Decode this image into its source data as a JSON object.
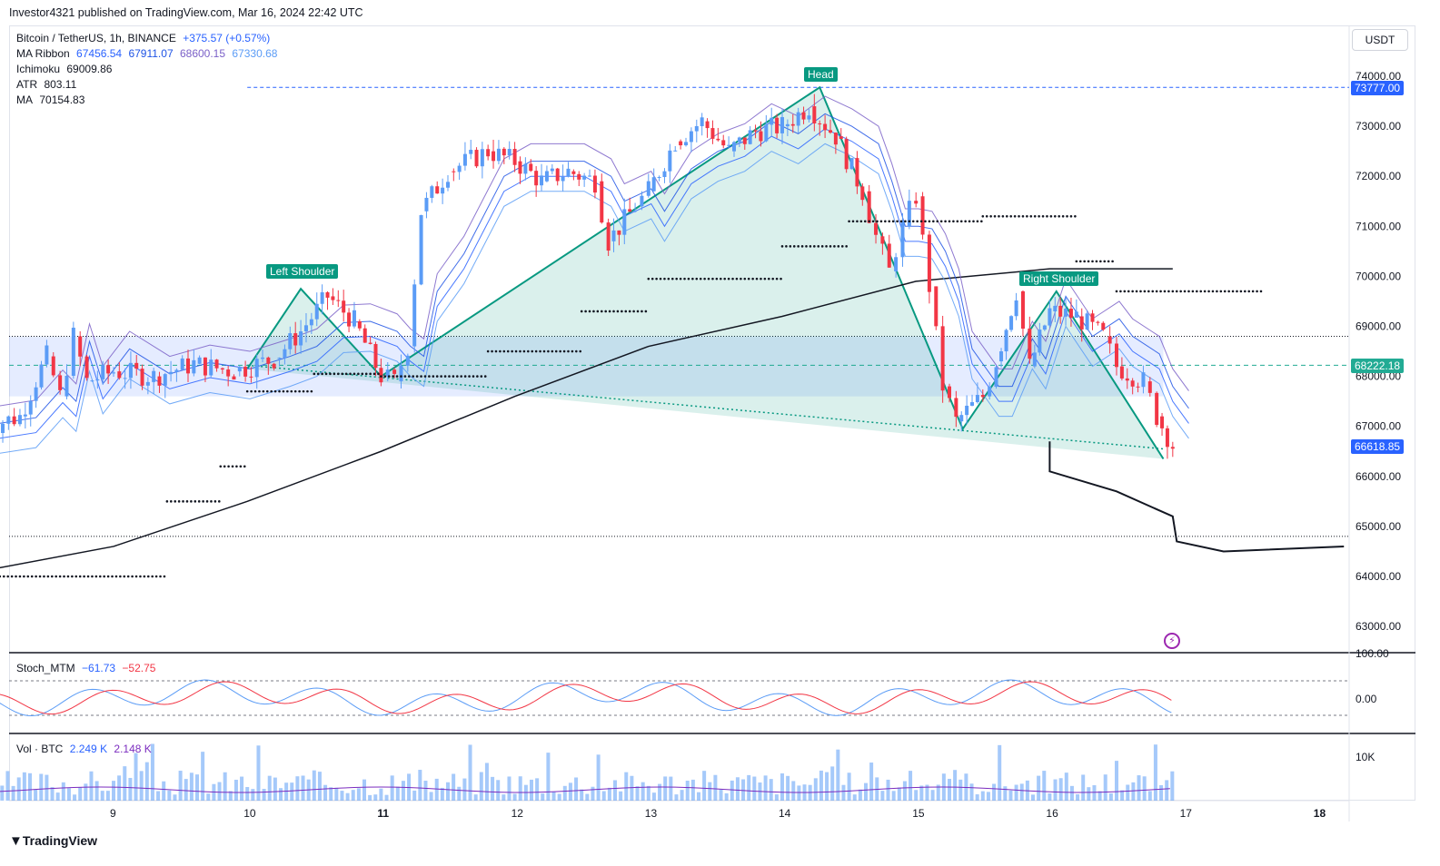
{
  "header": {
    "publisher": "Investor4321 published on TradingView.com, Mar 16, 2024 22:42 UTC"
  },
  "currency_button": "USDT",
  "legend": {
    "symbol": "Bitcoin / TetherUS, 1h, BINANCE",
    "change": "+375.57 (+0.57%)",
    "ma_ribbon_label": "MA Ribbon",
    "ma_ribbon_values": [
      "67456.54",
      "67911.07",
      "68600.15",
      "67330.68"
    ],
    "ichimoku_label": "Ichimoku",
    "ichimoku_value": "69009.86",
    "atr_label": "ATR",
    "atr_value": "803.11",
    "ma_label": "MA",
    "ma_value": "70154.83"
  },
  "pattern_labels": {
    "left": "Left Shoulder",
    "head": "Head",
    "right": "Right Shoulder"
  },
  "price_tags": [
    {
      "text": "73777.00",
      "color": "#2962ff",
      "price": 73777
    },
    {
      "text": "68222.18",
      "color": "#22ab94",
      "price": 68222.18
    },
    {
      "text": "66618.85",
      "color": "#2962ff",
      "price": 66618.85
    }
  ],
  "stoch": {
    "label": "Stoch_MTM",
    "v1": "−61.73",
    "v2": "−52.75"
  },
  "volume": {
    "label": "Vol · BTC",
    "v1": "2.249 K",
    "v2": "2.148 K"
  },
  "footer": "TradingView",
  "chart_data": {
    "type": "candlestick",
    "symbol": "BTC/USDT",
    "interval": "1h",
    "y_ticks": [
      63000,
      64000,
      65000,
      66000,
      67000,
      68000,
      69000,
      70000,
      71000,
      72000,
      73000,
      74000
    ],
    "x_ticks": [
      "9",
      "10",
      "11",
      "12",
      "13",
      "14",
      "15",
      "16",
      "17",
      "18"
    ],
    "stoch_ticks": [
      "100.00",
      "0.00"
    ],
    "volume_ticks": [
      "10K"
    ],
    "price_path": [
      [
        8.0,
        66950
      ],
      [
        8.3,
        67200
      ],
      [
        8.5,
        68400
      ],
      [
        8.6,
        67600
      ],
      [
        8.7,
        68800
      ],
      [
        8.8,
        67900
      ],
      [
        9.0,
        68100
      ],
      [
        9.3,
        68000
      ],
      [
        9.6,
        68250
      ],
      [
        9.9,
        68100
      ],
      [
        10.2,
        68350
      ],
      [
        10.4,
        68900
      ],
      [
        10.6,
        69600
      ],
      [
        10.8,
        69100
      ],
      [
        11.0,
        68000
      ],
      [
        11.1,
        67900
      ],
      [
        11.2,
        68600
      ],
      [
        11.3,
        71300
      ],
      [
        11.5,
        72100
      ],
      [
        11.8,
        72500
      ],
      [
        12.0,
        72300
      ],
      [
        12.2,
        71900
      ],
      [
        12.4,
        72100
      ],
      [
        12.6,
        71900
      ],
      [
        12.7,
        70700
      ],
      [
        12.9,
        71400
      ],
      [
        13.0,
        71700
      ],
      [
        13.2,
        72700
      ],
      [
        13.4,
        73100
      ],
      [
        13.6,
        72500
      ],
      [
        13.8,
        72900
      ],
      [
        14.0,
        73000
      ],
      [
        14.2,
        73400
      ],
      [
        14.4,
        72800
      ],
      [
        14.6,
        71700
      ],
      [
        14.7,
        70800
      ],
      [
        14.8,
        70100
      ],
      [
        14.9,
        71000
      ],
      [
        15.0,
        71600
      ],
      [
        15.1,
        69800
      ],
      [
        15.2,
        67800
      ],
      [
        15.3,
        67100
      ],
      [
        15.5,
        67600
      ],
      [
        15.6,
        68300
      ],
      [
        15.75,
        69700
      ],
      [
        15.85,
        68200
      ],
      [
        16.0,
        69300
      ],
      [
        16.2,
        69200
      ],
      [
        16.4,
        68800
      ],
      [
        16.5,
        68200
      ],
      [
        16.7,
        67900
      ],
      [
        16.8,
        67200
      ],
      [
        16.92,
        66619
      ]
    ],
    "ma_line": [
      [
        8.0,
        64100
      ],
      [
        9.0,
        64600
      ],
      [
        10.0,
        65500
      ],
      [
        11.0,
        66500
      ],
      [
        12.0,
        67600
      ],
      [
        13.0,
        68600
      ],
      [
        14.0,
        69200
      ],
      [
        15.0,
        69900
      ],
      [
        16.0,
        70150
      ],
      [
        16.92,
        70150
      ]
    ],
    "projection": [
      [
        16.0,
        66700
      ],
      [
        16.0,
        66100
      ],
      [
        16.5,
        65700
      ],
      [
        16.92,
        65200
      ],
      [
        16.95,
        64700
      ],
      [
        17.3,
        64500
      ],
      [
        18.2,
        64600
      ]
    ],
    "pattern_points": [
      [
        10.0,
        68150
      ],
      [
        10.4,
        69750
      ],
      [
        11.0,
        68000
      ],
      [
        14.28,
        73777
      ],
      [
        15.35,
        66950
      ],
      [
        16.05,
        69700
      ],
      [
        16.85,
        66350
      ]
    ],
    "neckline": [
      [
        10.0,
        68222
      ],
      [
        16.85,
        66550
      ]
    ],
    "horizontal_levels": [
      73777,
      68800,
      64800
    ],
    "range_band": [
      67600,
      68800
    ]
  }
}
